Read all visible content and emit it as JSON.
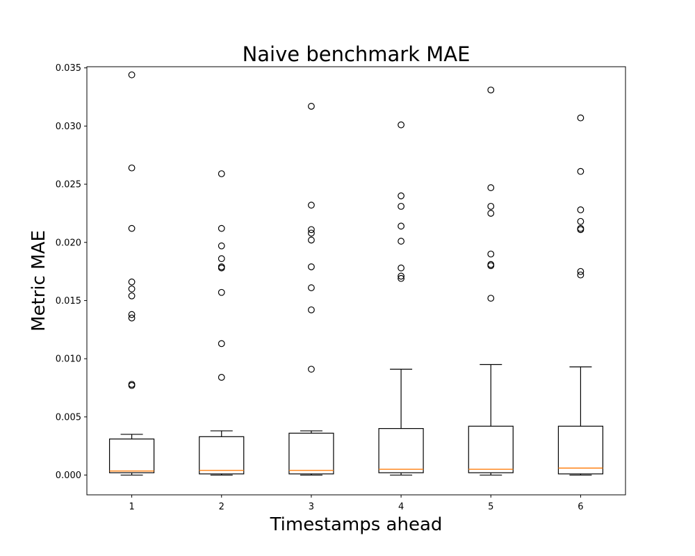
{
  "chart_data": {
    "type": "box",
    "title": "Naive benchmark MAE",
    "xlabel": "Timestamps ahead",
    "ylabel": "Metric MAE",
    "categories": [
      "1",
      "2",
      "3",
      "4",
      "5",
      "6"
    ],
    "ylim": [
      -0.0017,
      0.0351
    ],
    "yticks": [
      0.0,
      0.005,
      0.01,
      0.015,
      0.02,
      0.025,
      0.03,
      0.035
    ],
    "ytick_labels": [
      "0.000",
      "0.005",
      "0.010",
      "0.015",
      "0.020",
      "0.025",
      "0.030",
      "0.035"
    ],
    "grid": false,
    "colors": {
      "box": "#000000",
      "median": "#ff7f0e",
      "outlier": "#000000"
    },
    "boxes": [
      {
        "category": "1",
        "whisker_low": 0.0,
        "q1": 0.0002,
        "median": 0.00035,
        "q3": 0.0031,
        "whisker_high": 0.0035,
        "outliers": [
          0.0344,
          0.0264,
          0.0212,
          0.0166,
          0.016,
          0.0154,
          0.0138,
          0.0135,
          0.0078,
          0.0077
        ]
      },
      {
        "category": "2",
        "whisker_low": 0.0,
        "q1": 0.0001,
        "median": 0.0004,
        "q3": 0.0033,
        "whisker_high": 0.0038,
        "outliers": [
          0.0259,
          0.0212,
          0.0197,
          0.0186,
          0.0179,
          0.0178,
          0.0157,
          0.0113,
          0.0084
        ]
      },
      {
        "category": "3",
        "whisker_low": 0.0,
        "q1": 0.0001,
        "median": 0.0004,
        "q3": 0.0036,
        "whisker_high": 0.0038,
        "outliers": [
          0.0317,
          0.0232,
          0.0211,
          0.0208,
          0.0202,
          0.0179,
          0.0161,
          0.0142,
          0.0091
        ]
      },
      {
        "category": "4",
        "whisker_low": 0.0,
        "q1": 0.0002,
        "median": 0.0005,
        "q3": 0.004,
        "whisker_high": 0.0091,
        "outliers": [
          0.0301,
          0.024,
          0.0231,
          0.0214,
          0.0201,
          0.0178,
          0.0171,
          0.0169
        ]
      },
      {
        "category": "5",
        "whisker_low": 0.0,
        "q1": 0.0002,
        "median": 0.0005,
        "q3": 0.0042,
        "whisker_high": 0.0095,
        "outliers": [
          0.0331,
          0.0247,
          0.0231,
          0.0225,
          0.019,
          0.0181,
          0.018,
          0.0152
        ]
      },
      {
        "category": "6",
        "whisker_low": 0.0,
        "q1": 0.0001,
        "median": 0.0006,
        "q3": 0.0042,
        "whisker_high": 0.0093,
        "outliers": [
          0.0307,
          0.0261,
          0.0228,
          0.0218,
          0.0212,
          0.0211,
          0.0175,
          0.0172
        ]
      }
    ]
  }
}
